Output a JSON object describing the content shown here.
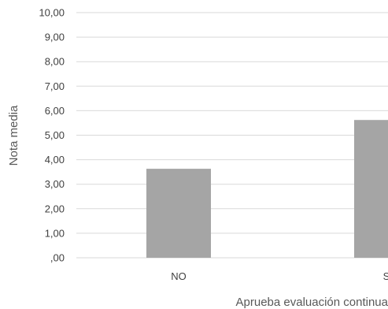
{
  "chart_data": {
    "type": "bar",
    "categories": [
      "NO",
      "S"
    ],
    "values": [
      3.63,
      5.62
    ],
    "xlabel": "Aprueba evaluación continua",
    "ylabel": "Nota media",
    "ylim": [
      0,
      10
    ],
    "y_ticks": [
      ",00",
      "1,00",
      "2,00",
      "3,00",
      "4,00",
      "5,00",
      "6,00",
      "7,00",
      "8,00",
      "9,00",
      "10,00"
    ],
    "grid": true,
    "bar_color": "#a5a5a5",
    "grid_color": "#d9d9d9"
  }
}
